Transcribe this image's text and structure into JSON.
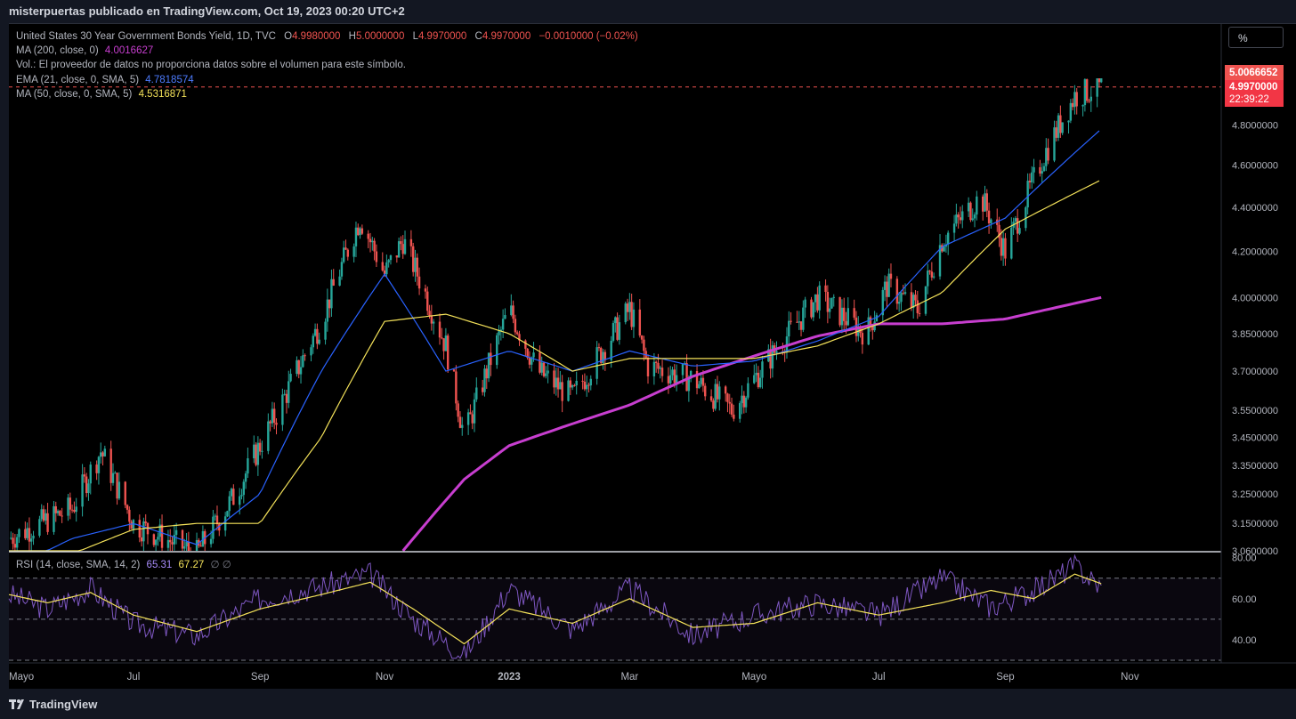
{
  "header": {
    "published_by": "misterpuertas publicado en TradingView.com, Oct 19, 2023 00:20 UTC+2"
  },
  "legend": {
    "title": "United States 30 Year Government Bonds Yield, 1D, TVC",
    "ohlc": [
      {
        "label": "O",
        "value": "4.9980000"
      },
      {
        "label": "H",
        "value": "5.0000000"
      },
      {
        "label": "L",
        "value": "4.9970000"
      },
      {
        "label": "C",
        "value": "4.9970000"
      }
    ],
    "change": "−0.0010000 (−0.02%)",
    "ma200": {
      "label": "MA (200, close, 0)",
      "value": "4.0016627"
    },
    "vol_note": "Vol.: El proveedor de datos no proporciona datos sobre el volumen para este símbolo.",
    "ema21": {
      "label": "EMA (21, close, 0, SMA, 5)",
      "value": "4.7818574"
    },
    "ma50": {
      "label": "MA (50, close, 0, SMA, 5)",
      "value": "4.5316871"
    }
  },
  "rsi_legend": {
    "label": "RSI (14, close, SMA, 14, 2)",
    "rsi": "65.31",
    "rsi_ma": "67.27",
    "extra": "∅ ∅"
  },
  "unit_button": {
    "label": "%"
  },
  "price_tags": {
    "high": "5.0066652",
    "last": "4.9970000",
    "countdown": "22:39:22"
  },
  "footer": {
    "brand": "TradingView"
  },
  "colors": {
    "up": "#26a69a",
    "down": "#ef5350",
    "ma200": "#c73ecf",
    "ema21": "#2962ff",
    "ma50": "#f5e35a",
    "rsi": "#7e57c2",
    "rsi_ma": "#f5e35a",
    "price_line": "#ef5350"
  },
  "chart_data": {
    "type": "line",
    "title": "United States 30 Year Government Bonds Yield, 1D, TVC",
    "y_axis": {
      "ticks": [
        "4.8000000",
        "4.6000000",
        "4.4000000",
        "4.2000000",
        "4.0000000",
        "3.8500000",
        "3.7000000",
        "3.5500000",
        "3.4500000",
        "3.3500000",
        "3.2500000",
        "3.1500000",
        "3.0600000"
      ],
      "ylim": [
        3.06,
        5.01
      ],
      "scale": "log"
    },
    "x_axis": {
      "ticks": [
        "Mayo",
        "Jul",
        "Sep",
        "Nov",
        "2023",
        "Mar",
        "Mayo",
        "Jul",
        "Sep",
        "Nov"
      ],
      "range": [
        "2022-05-01",
        "2023-11-10"
      ]
    },
    "series": [
      {
        "name": "MA (200, close, 0)",
        "x": [
          "2022-11-10",
          "2022-12-10",
          "2023-01-01",
          "2023-02-01",
          "2023-03-01",
          "2023-04-01",
          "2023-05-01",
          "2023-06-01",
          "2023-07-01",
          "2023-08-01",
          "2023-09-01",
          "2023-10-18"
        ],
        "values": [
          3.06,
          3.3,
          3.42,
          3.5,
          3.57,
          3.68,
          3.76,
          3.84,
          3.89,
          3.89,
          3.91,
          4.0
        ]
      },
      {
        "name": "EMA (21, close, 0, SMA, 5)",
        "x": [
          "2022-05-01",
          "2022-06-01",
          "2022-07-01",
          "2022-08-01",
          "2022-09-01",
          "2022-10-01",
          "2022-11-01",
          "2022-12-01",
          "2023-01-01",
          "2023-02-01",
          "2023-03-01",
          "2023-04-01",
          "2023-05-01",
          "2023-06-01",
          "2023-07-01",
          "2023-08-01",
          "2023-09-01",
          "2023-10-18"
        ],
        "values": [
          3.0,
          3.1,
          3.15,
          3.08,
          3.25,
          3.7,
          4.1,
          3.7,
          3.78,
          3.7,
          3.78,
          3.72,
          3.74,
          3.82,
          3.92,
          4.22,
          4.35,
          4.78
        ]
      },
      {
        "name": "MA (50, close, 0, SMA, 5)",
        "x": [
          "2022-05-01",
          "2022-06-01",
          "2022-07-01",
          "2022-08-01",
          "2022-09-01",
          "2022-10-01",
          "2022-11-01",
          "2022-12-01",
          "2023-01-01",
          "2023-02-01",
          "2023-03-01",
          "2023-04-01",
          "2023-05-01",
          "2023-06-01",
          "2023-07-01",
          "2023-08-01",
          "2023-09-01",
          "2023-10-18"
        ],
        "values": [
          2.95,
          3.05,
          3.13,
          3.15,
          3.15,
          3.45,
          3.9,
          3.93,
          3.85,
          3.7,
          3.75,
          3.75,
          3.75,
          3.8,
          3.89,
          4.02,
          4.3,
          4.53
        ]
      }
    ],
    "price_series": {
      "x": [
        "2022-05-01",
        "2022-06-01",
        "2022-06-15",
        "2022-07-01",
        "2022-08-01",
        "2022-08-20",
        "2022-09-10",
        "2022-10-01",
        "2022-10-20",
        "2022-11-01",
        "2022-11-10",
        "2022-12-01",
        "2022-12-10",
        "2023-01-01",
        "2023-01-15",
        "2023-02-01",
        "2023-03-01",
        "2023-03-10",
        "2023-04-01",
        "2023-04-20",
        "2023-05-15",
        "2023-06-01",
        "2023-06-25",
        "2023-07-05",
        "2023-07-20",
        "2023-08-01",
        "2023-08-20",
        "2023-09-01",
        "2023-09-20",
        "2023-10-05",
        "2023-10-18"
      ],
      "values": [
        3.1,
        3.2,
        3.4,
        3.15,
        3.05,
        3.25,
        3.55,
        3.9,
        4.35,
        4.1,
        4.25,
        3.8,
        3.45,
        3.95,
        3.7,
        3.6,
        3.95,
        3.72,
        3.67,
        3.55,
        3.82,
        4.0,
        3.85,
        4.05,
        3.95,
        4.25,
        4.45,
        4.2,
        4.65,
        4.95,
        4.997
      ]
    },
    "rsi": {
      "ylim": [
        30,
        82
      ],
      "ticks": [
        "80.00",
        "60.00",
        "40.00"
      ],
      "levels": [
        70,
        50,
        30
      ],
      "x": [
        "2022-05-01",
        "2022-05-20",
        "2022-06-10",
        "2022-07-01",
        "2022-08-01",
        "2022-09-01",
        "2022-10-01",
        "2022-10-25",
        "2022-11-15",
        "2022-12-10",
        "2023-01-01",
        "2023-02-01",
        "2023-03-01",
        "2023-04-01",
        "2023-05-01",
        "2023-06-01",
        "2023-07-01",
        "2023-08-01",
        "2023-08-25",
        "2023-09-15",
        "2023-10-05",
        "2023-10-18"
      ],
      "values": [
        62,
        55,
        65,
        48,
        42,
        60,
        66,
        72,
        50,
        32,
        65,
        45,
        65,
        42,
        52,
        58,
        52,
        70,
        56,
        64,
        76,
        65.31
      ],
      "ma_values": [
        62,
        58,
        63,
        52,
        44,
        55,
        62,
        68,
        55,
        38,
        55,
        48,
        60,
        46,
        48,
        58,
        52,
        58,
        64,
        60,
        72,
        67.27
      ]
    }
  }
}
